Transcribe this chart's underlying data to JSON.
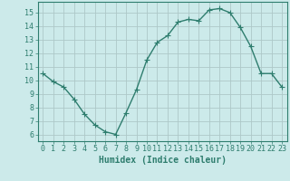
{
  "x": [
    0,
    1,
    2,
    3,
    4,
    5,
    6,
    7,
    8,
    9,
    10,
    11,
    12,
    13,
    14,
    15,
    16,
    17,
    18,
    19,
    20,
    21,
    22,
    23
  ],
  "y": [
    10.5,
    9.9,
    9.5,
    8.6,
    7.5,
    6.7,
    6.2,
    6.0,
    7.6,
    9.3,
    11.5,
    12.8,
    13.3,
    14.3,
    14.5,
    14.4,
    15.2,
    15.3,
    15.0,
    13.9,
    12.5,
    10.5,
    10.5,
    9.5
  ],
  "line_color": "#2e7d6e",
  "marker": "+",
  "markersize": 4,
  "linewidth": 1.0,
  "bg_color": "#cceaea",
  "grid_color": "#adc8c8",
  "xlabel": "Humidex (Indice chaleur)",
  "xlabel_fontsize": 7,
  "tick_fontsize": 6,
  "xlim": [
    -0.5,
    23.5
  ],
  "ylim": [
    5.5,
    15.8
  ],
  "yticks": [
    6,
    7,
    8,
    9,
    10,
    11,
    12,
    13,
    14,
    15
  ],
  "xticks": [
    0,
    1,
    2,
    3,
    4,
    5,
    6,
    7,
    8,
    9,
    10,
    11,
    12,
    13,
    14,
    15,
    16,
    17,
    18,
    19,
    20,
    21,
    22,
    23
  ]
}
